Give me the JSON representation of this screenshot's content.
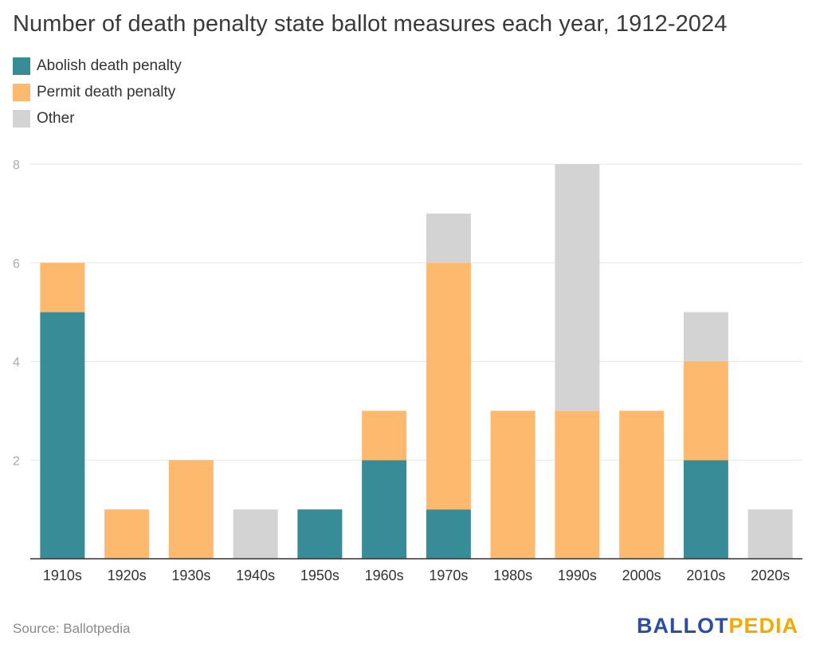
{
  "title": "Number of death penalty state ballot measures each year, 1912-2024",
  "source": "Source: Ballotpedia",
  "logo": {
    "part1": "BALLOT",
    "part2": "PEDIA"
  },
  "colors": {
    "abolish": "#378c98",
    "permit": "#fdb96e",
    "other": "#d3d3d3",
    "grid": "#e6e6e6",
    "axis": "#333333",
    "logo_blue": "#2b4ea2",
    "logo_gold": "#f2a900"
  },
  "chart_data": {
    "type": "bar",
    "stacked": true,
    "title": "Number of death penalty state ballot measures each year, 1912-2024",
    "xlabel": "",
    "ylabel": "",
    "ylim": [
      0,
      8
    ],
    "yticks": [
      2,
      4,
      6,
      8
    ],
    "grid": true,
    "legend_position": "top-left",
    "categories": [
      "1910s",
      "1920s",
      "1930s",
      "1940s",
      "1950s",
      "1960s",
      "1970s",
      "1980s",
      "1990s",
      "2000s",
      "2010s",
      "2020s"
    ],
    "series": [
      {
        "name": "Abolish death penalty",
        "color": "#378c98",
        "values": [
          5,
          0,
          0,
          0,
          1,
          2,
          1,
          0,
          0,
          0,
          2,
          0
        ]
      },
      {
        "name": "Permit death penalty",
        "color": "#fdb96e",
        "values": [
          1,
          1,
          2,
          0,
          0,
          1,
          5,
          3,
          3,
          3,
          2,
          0
        ]
      },
      {
        "name": "Other",
        "color": "#d3d3d3",
        "values": [
          0,
          0,
          0,
          1,
          0,
          0,
          1,
          0,
          5,
          0,
          1,
          1
        ]
      }
    ]
  }
}
